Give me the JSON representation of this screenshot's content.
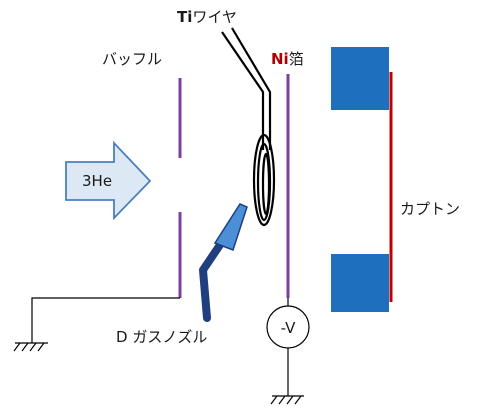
{
  "labels": {
    "ti_prefix": "Ti",
    "ti_suffix": "ワイヤ",
    "baffle": "バッフル",
    "ni_prefix": "Ni",
    "ni_suffix": "箔",
    "arrow": "3He",
    "kapton": "カプトン",
    "nozzle_prefix": "D",
    "nozzle_suffix": " ガスノズル",
    "voltage": "-V"
  },
  "colors": {
    "baffle": "#7b3fa0",
    "foil": "#7b3fa0",
    "kapton_line": "#c00000",
    "blocks": "#1f6fbf",
    "ni_text": "#b00000",
    "nozzle_body": "#1f3f7f",
    "nozzle_tip": "#4a8fd8",
    "arrow_fill": "#dde8f5",
    "arrow_stroke": "#4a7fbf",
    "wires": "#000000"
  }
}
